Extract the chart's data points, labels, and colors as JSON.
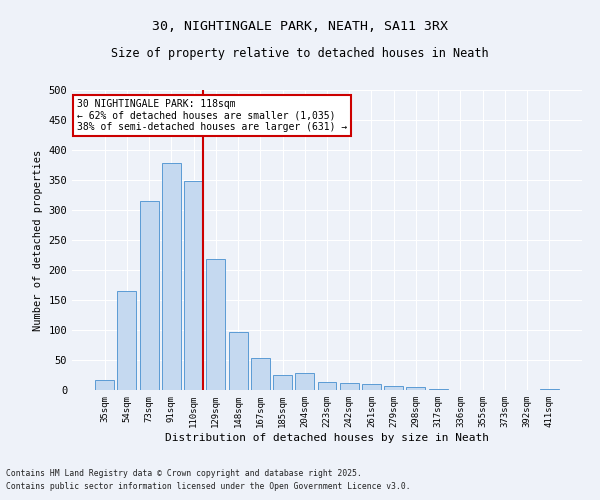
{
  "title1": "30, NIGHTINGALE PARK, NEATH, SA11 3RX",
  "title2": "Size of property relative to detached houses in Neath",
  "xlabel": "Distribution of detached houses by size in Neath",
  "ylabel": "Number of detached properties",
  "categories": [
    "35sqm",
    "54sqm",
    "73sqm",
    "91sqm",
    "110sqm",
    "129sqm",
    "148sqm",
    "167sqm",
    "185sqm",
    "204sqm",
    "223sqm",
    "242sqm",
    "261sqm",
    "279sqm",
    "298sqm",
    "317sqm",
    "336sqm",
    "355sqm",
    "373sqm",
    "392sqm",
    "411sqm"
  ],
  "values": [
    17,
    165,
    315,
    378,
    348,
    218,
    97,
    54,
    25,
    29,
    13,
    11,
    10,
    6,
    5,
    1,
    0,
    0,
    0,
    0,
    2
  ],
  "bar_color": "#c5d9f0",
  "bar_edge_color": "#5b9bd5",
  "red_line_index": 4.42,
  "annotation_line1": "30 NIGHTINGALE PARK: 118sqm",
  "annotation_line2": "← 62% of detached houses are smaller (1,035)",
  "annotation_line3": "38% of semi-detached houses are larger (631) →",
  "annotation_box_color": "#ffffff",
  "annotation_box_edge": "#cc0000",
  "footnote1": "Contains HM Land Registry data © Crown copyright and database right 2025.",
  "footnote2": "Contains public sector information licensed under the Open Government Licence v3.0.",
  "background_color": "#eef2f9",
  "ylim": [
    0,
    500
  ],
  "yticks": [
    0,
    50,
    100,
    150,
    200,
    250,
    300,
    350,
    400,
    450,
    500
  ]
}
